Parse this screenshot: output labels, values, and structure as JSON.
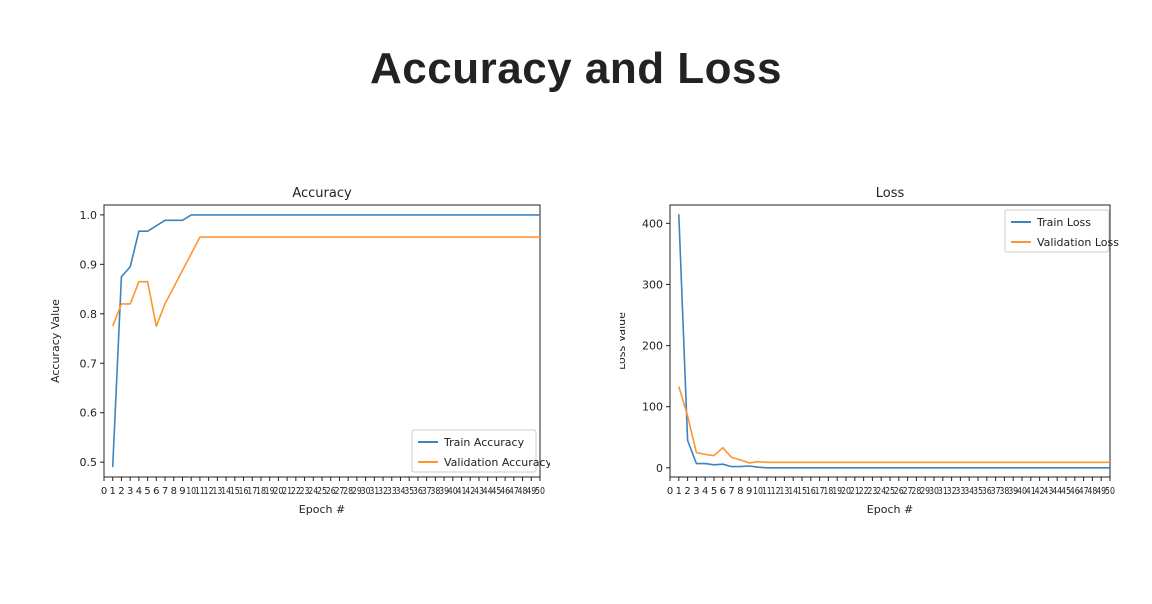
{
  "slide": {
    "title": "Accuracy and Loss"
  },
  "colors": {
    "series1": "#3b84c0",
    "series2": "#ff9530",
    "axes": "#222222",
    "title": "#222222"
  },
  "chart_data": [
    {
      "type": "line",
      "title": "Accuracy",
      "xlabel": "Epoch #",
      "ylabel": "Accuracy Value",
      "xlim": [
        0,
        50
      ],
      "ylim": [
        0.47,
        1.02
      ],
      "xticks": [
        0,
        1,
        2,
        3,
        4,
        5,
        6,
        7,
        8,
        9,
        10,
        11,
        12,
        13,
        14,
        15,
        16,
        17,
        18,
        19,
        20,
        21,
        22,
        23,
        24,
        25,
        26,
        27,
        28,
        29,
        30,
        31,
        32,
        33,
        34,
        35,
        36,
        37,
        38,
        39,
        40,
        41,
        42,
        43,
        44,
        45,
        46,
        47,
        48,
        49,
        50
      ],
      "yticks": [
        0.5,
        0.6,
        0.7,
        0.8,
        0.9,
        1.0
      ],
      "ytick_labels": [
        "0.5",
        "0.6",
        "0.7",
        "0.8",
        "0.9",
        "1.0"
      ],
      "legend": "bottom-right",
      "grid": false,
      "series": [
        {
          "name": "Train Accuracy",
          "color": "#3b84c0",
          "x": [
            1,
            2,
            3,
            4,
            5,
            6,
            7,
            8,
            9,
            10,
            11,
            50
          ],
          "y": [
            0.49,
            0.875,
            0.895,
            0.967,
            0.967,
            0.978,
            0.989,
            0.989,
            0.989,
            1.0,
            1.0,
            1.0
          ]
        },
        {
          "name": "Validation Accuracy",
          "color": "#ff9530",
          "x": [
            1,
            2,
            3,
            4,
            5,
            6,
            7,
            11,
            50
          ],
          "y": [
            0.775,
            0.82,
            0.82,
            0.865,
            0.865,
            0.775,
            0.82,
            0.955,
            0.955
          ]
        }
      ]
    },
    {
      "type": "line",
      "title": "Loss",
      "xlabel": "Epoch #",
      "ylabel": "Loss Value",
      "xlim": [
        0,
        50
      ],
      "ylim": [
        -15,
        430
      ],
      "xticks": [
        0,
        1,
        2,
        3,
        4,
        5,
        6,
        7,
        8,
        9,
        10,
        11,
        12,
        13,
        14,
        15,
        16,
        17,
        18,
        19,
        20,
        21,
        22,
        23,
        24,
        25,
        26,
        27,
        28,
        29,
        30,
        31,
        32,
        33,
        34,
        35,
        36,
        37,
        38,
        39,
        40,
        41,
        42,
        43,
        44,
        45,
        46,
        47,
        48,
        49,
        50
      ],
      "yticks": [
        0,
        100,
        200,
        300,
        400
      ],
      "ytick_labels": [
        "0",
        "100",
        "200",
        "300",
        "400"
      ],
      "legend": "top-right",
      "grid": false,
      "series": [
        {
          "name": "Train Loss",
          "color": "#3b84c0",
          "x": [
            1,
            2,
            3,
            4,
            5,
            6,
            7,
            8,
            9,
            10,
            11,
            50
          ],
          "y": [
            415,
            45,
            7,
            7,
            5,
            6,
            2,
            2,
            3,
            1,
            0,
            0
          ]
        },
        {
          "name": "Validation Loss",
          "color": "#ff9530",
          "x": [
            1,
            2,
            3,
            4,
            5,
            6,
            7,
            8,
            9,
            10,
            11,
            50
          ],
          "y": [
            133,
            85,
            25,
            22,
            20,
            33,
            17,
            13,
            8,
            10,
            9,
            9
          ]
        }
      ]
    }
  ]
}
